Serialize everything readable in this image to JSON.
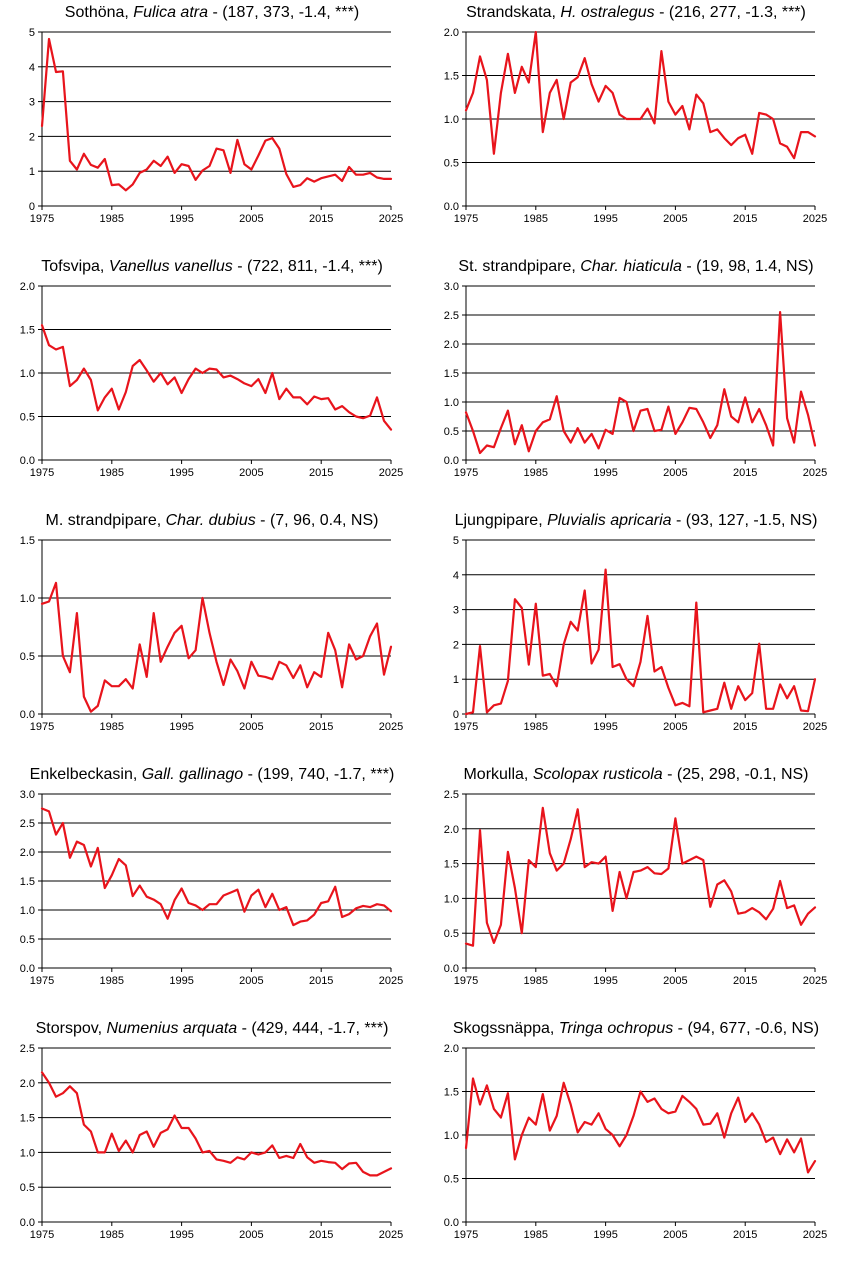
{
  "chart_data": [
    {
      "type": "line",
      "title": {
        "name": "Sothöna, ",
        "species": "Fulica atra",
        "stats": " - (187, 373, -1.4, ***)"
      },
      "ylim": [
        0,
        5
      ],
      "yticks": [
        0,
        1,
        2,
        3,
        4,
        5
      ],
      "xlim": [
        1975,
        2025
      ],
      "xticks": [
        1975,
        1985,
        1995,
        2005,
        2015,
        2025
      ],
      "grid": true,
      "color": "#e8141c",
      "x": [
        1975,
        1976,
        1977,
        1978,
        1979,
        1980,
        1981,
        1982,
        1983,
        1984,
        1985,
        1986,
        1987,
        1988,
        1989,
        1990,
        1991,
        1992,
        1993,
        1994,
        1995,
        1996,
        1997,
        1998,
        1999,
        2000,
        2001,
        2002,
        2003,
        2004,
        2005,
        2006,
        2007,
        2008,
        2009,
        2010,
        2011,
        2012,
        2013,
        2014,
        2015,
        2016,
        2017,
        2018,
        2019,
        2020,
        2021,
        2022,
        2023,
        2024,
        2025
      ],
      "values": [
        2.3,
        4.8,
        3.85,
        3.87,
        1.3,
        1.05,
        1.5,
        1.18,
        1.1,
        1.35,
        0.6,
        0.62,
        0.45,
        0.62,
        0.95,
        1.05,
        1.3,
        1.15,
        1.42,
        0.95,
        1.2,
        1.15,
        0.75,
        1.02,
        1.15,
        1.65,
        1.6,
        0.95,
        1.9,
        1.2,
        1.05,
        1.45,
        1.88,
        1.95,
        1.65,
        0.92,
        0.55,
        0.6,
        0.8,
        0.7,
        0.8,
        0.85,
        0.9,
        0.72,
        1.12,
        0.9,
        0.9,
        0.95,
        0.82,
        0.78,
        0.78
      ]
    },
    {
      "type": "line",
      "title": {
        "name": "Strandskata, ",
        "species": "H. ostralegus",
        "stats": " - (216, 277, -1.3, ***)"
      },
      "ylim": [
        0,
        2
      ],
      "yticks": [
        0.0,
        0.5,
        1.0,
        1.5,
        2.0
      ],
      "xlim": [
        1975,
        2025
      ],
      "xticks": [
        1975,
        1985,
        1995,
        2005,
        2015,
        2025
      ],
      "grid": true,
      "color": "#e8141c",
      "x": [
        1975,
        1976,
        1977,
        1978,
        1979,
        1980,
        1981,
        1982,
        1983,
        1984,
        1985,
        1986,
        1987,
        1988,
        1989,
        1990,
        1991,
        1992,
        1993,
        1994,
        1995,
        1996,
        1997,
        1998,
        1999,
        2000,
        2001,
        2002,
        2003,
        2004,
        2005,
        2006,
        2007,
        2008,
        2009,
        2010,
        2011,
        2012,
        2013,
        2014,
        2015,
        2016,
        2017,
        2018,
        2019,
        2020,
        2021,
        2022,
        2023,
        2024,
        2025
      ],
      "values": [
        1.1,
        1.3,
        1.72,
        1.45,
        0.6,
        1.3,
        1.75,
        1.3,
        1.6,
        1.42,
        2.0,
        0.85,
        1.3,
        1.45,
        1.0,
        1.42,
        1.48,
        1.7,
        1.4,
        1.2,
        1.38,
        1.3,
        1.05,
        1.0,
        1.0,
        1.0,
        1.12,
        0.95,
        1.78,
        1.2,
        1.05,
        1.15,
        0.88,
        1.28,
        1.18,
        0.85,
        0.88,
        0.78,
        0.7,
        0.78,
        0.82,
        0.6,
        1.07,
        1.05,
        1.0,
        0.72,
        0.68,
        0.55,
        0.85,
        0.85,
        0.8
      ]
    },
    {
      "type": "line",
      "title": {
        "name": "Tofsvipa, ",
        "species": "Vanellus vanellus",
        "stats": " - (722, 811, -1.4, ***)"
      },
      "ylim": [
        0,
        2
      ],
      "yticks": [
        0.0,
        0.5,
        1.0,
        1.5,
        2.0
      ],
      "xlim": [
        1975,
        2025
      ],
      "xticks": [
        1975,
        1985,
        1995,
        2005,
        2015,
        2025
      ],
      "grid": true,
      "color": "#e8141c",
      "x": [
        1975,
        1976,
        1977,
        1978,
        1979,
        1980,
        1981,
        1982,
        1983,
        1984,
        1985,
        1986,
        1987,
        1988,
        1989,
        1990,
        1991,
        1992,
        1993,
        1994,
        1995,
        1996,
        1997,
        1998,
        1999,
        2000,
        2001,
        2002,
        2003,
        2004,
        2005,
        2006,
        2007,
        2008,
        2009,
        2010,
        2011,
        2012,
        2013,
        2014,
        2015,
        2016,
        2017,
        2018,
        2019,
        2020,
        2021,
        2022,
        2023,
        2024,
        2025
      ],
      "values": [
        1.55,
        1.32,
        1.27,
        1.3,
        0.85,
        0.92,
        1.05,
        0.92,
        0.57,
        0.72,
        0.82,
        0.58,
        0.78,
        1.08,
        1.15,
        1.03,
        0.9,
        1.0,
        0.87,
        0.95,
        0.77,
        0.93,
        1.05,
        1.0,
        1.05,
        1.04,
        0.95,
        0.97,
        0.93,
        0.88,
        0.85,
        0.93,
        0.77,
        1.0,
        0.7,
        0.82,
        0.72,
        0.72,
        0.64,
        0.73,
        0.7,
        0.71,
        0.58,
        0.62,
        0.55,
        0.5,
        0.48,
        0.51,
        0.72,
        0.45,
        0.35
      ]
    },
    {
      "type": "line",
      "title": {
        "name": "St. strandpipare, ",
        "species": "Char. hiaticula",
        "stats": " - (19, 98, 1.4, NS)"
      },
      "ylim": [
        0,
        3
      ],
      "yticks": [
        0.0,
        0.5,
        1.0,
        1.5,
        2.0,
        2.5,
        3.0
      ],
      "xlim": [
        1975,
        2025
      ],
      "xticks": [
        1975,
        1985,
        1995,
        2005,
        2015,
        2025
      ],
      "grid": true,
      "color": "#e8141c",
      "x": [
        1975,
        1976,
        1977,
        1978,
        1979,
        1980,
        1981,
        1982,
        1983,
        1984,
        1985,
        1986,
        1987,
        1988,
        1989,
        1990,
        1991,
        1992,
        1993,
        1994,
        1995,
        1996,
        1997,
        1998,
        1999,
        2000,
        2001,
        2002,
        2003,
        2004,
        2005,
        2006,
        2007,
        2008,
        2009,
        2010,
        2011,
        2012,
        2013,
        2014,
        2015,
        2016,
        2017,
        2018,
        2019,
        2020,
        2021,
        2022,
        2023,
        2024,
        2025
      ],
      "values": [
        0.82,
        0.5,
        0.12,
        0.25,
        0.22,
        0.55,
        0.85,
        0.27,
        0.6,
        0.15,
        0.5,
        0.65,
        0.7,
        1.1,
        0.5,
        0.3,
        0.55,
        0.3,
        0.45,
        0.2,
        0.52,
        0.45,
        1.07,
        1.0,
        0.5,
        0.85,
        0.88,
        0.5,
        0.52,
        0.92,
        0.45,
        0.65,
        0.9,
        0.88,
        0.65,
        0.38,
        0.6,
        1.22,
        0.75,
        0.65,
        1.08,
        0.65,
        0.88,
        0.6,
        0.25,
        2.55,
        0.72,
        0.3,
        1.18,
        0.78,
        0.25
      ]
    },
    {
      "type": "line",
      "title": {
        "name": "M. strandpipare, ",
        "species": "Char. dubius",
        "stats": " - (7, 96, 0.4, NS)"
      },
      "ylim": [
        0,
        1.5
      ],
      "yticks": [
        0.0,
        0.5,
        1.0,
        1.5
      ],
      "xlim": [
        1975,
        2025
      ],
      "xticks": [
        1975,
        1985,
        1995,
        2005,
        2015,
        2025
      ],
      "grid": true,
      "color": "#e8141c",
      "x": [
        1975,
        1976,
        1977,
        1978,
        1979,
        1980,
        1981,
        1982,
        1983,
        1984,
        1985,
        1986,
        1987,
        1988,
        1989,
        1990,
        1991,
        1992,
        1993,
        1994,
        1995,
        1996,
        1997,
        1998,
        1999,
        2000,
        2001,
        2002,
        2003,
        2004,
        2005,
        2006,
        2007,
        2008,
        2009,
        2010,
        2011,
        2012,
        2013,
        2014,
        2015,
        2016,
        2017,
        2018,
        2019,
        2020,
        2021,
        2022,
        2023,
        2024,
        2025
      ],
      "values": [
        0.95,
        0.97,
        1.13,
        0.5,
        0.36,
        0.87,
        0.15,
        0.02,
        0.07,
        0.29,
        0.24,
        0.24,
        0.3,
        0.22,
        0.6,
        0.32,
        0.87,
        0.45,
        0.58,
        0.7,
        0.76,
        0.48,
        0.55,
        1.0,
        0.7,
        0.45,
        0.25,
        0.47,
        0.37,
        0.22,
        0.45,
        0.33,
        0.32,
        0.3,
        0.45,
        0.42,
        0.31,
        0.42,
        0.23,
        0.36,
        0.32,
        0.7,
        0.55,
        0.23,
        0.6,
        0.47,
        0.5,
        0.67,
        0.78,
        0.34,
        0.58
      ]
    },
    {
      "type": "line",
      "title": {
        "name": "Ljungpipare, ",
        "species": "Pluvialis apricaria",
        "stats": " - (93, 127, -1.5, NS)"
      },
      "ylim": [
        0,
        5
      ],
      "yticks": [
        0,
        1,
        2,
        3,
        4,
        5
      ],
      "xlim": [
        1975,
        2025
      ],
      "xticks": [
        1975,
        1985,
        1995,
        2005,
        2015,
        2025
      ],
      "grid": true,
      "color": "#e8141c",
      "x": [
        1975,
        1976,
        1977,
        1978,
        1979,
        1980,
        1981,
        1982,
        1983,
        1984,
        1985,
        1986,
        1987,
        1988,
        1989,
        1990,
        1991,
        1992,
        1993,
        1994,
        1995,
        1996,
        1997,
        1998,
        1999,
        2000,
        2001,
        2002,
        2003,
        2004,
        2005,
        2006,
        2007,
        2008,
        2009,
        2010,
        2011,
        2012,
        2013,
        2014,
        2015,
        2016,
        2017,
        2018,
        2019,
        2020,
        2021,
        2022,
        2023,
        2024,
        2025
      ],
      "values": [
        0.0,
        0.05,
        1.95,
        0.05,
        0.25,
        0.3,
        0.95,
        3.3,
        3.05,
        1.42,
        3.17,
        1.1,
        1.15,
        0.8,
        2.0,
        2.65,
        2.4,
        3.55,
        1.45,
        1.85,
        4.15,
        1.35,
        1.43,
        1.0,
        0.8,
        1.5,
        2.82,
        1.22,
        1.35,
        0.75,
        0.25,
        0.32,
        0.22,
        3.2,
        0.05,
        0.1,
        0.15,
        0.9,
        0.15,
        0.8,
        0.4,
        0.6,
        2.02,
        0.15,
        0.15,
        0.85,
        0.45,
        0.8,
        0.1,
        0.08,
        1.0
      ]
    },
    {
      "type": "line",
      "title": {
        "name": "Enkelbeckasin, ",
        "species": "Gall. gallinago",
        "stats": " - (199, 740, -1.7, ***)"
      },
      "ylim": [
        0,
        3
      ],
      "yticks": [
        0.0,
        0.5,
        1.0,
        1.5,
        2.0,
        2.5,
        3.0
      ],
      "xlim": [
        1975,
        2025
      ],
      "xticks": [
        1975,
        1985,
        1995,
        2005,
        2015,
        2025
      ],
      "grid": true,
      "color": "#e8141c",
      "x": [
        1975,
        1976,
        1977,
        1978,
        1979,
        1980,
        1981,
        1982,
        1983,
        1984,
        1985,
        1986,
        1987,
        1988,
        1989,
        1990,
        1991,
        1992,
        1993,
        1994,
        1995,
        1996,
        1997,
        1998,
        1999,
        2000,
        2001,
        2002,
        2003,
        2004,
        2005,
        2006,
        2007,
        2008,
        2009,
        2010,
        2011,
        2012,
        2013,
        2014,
        2015,
        2016,
        2017,
        2018,
        2019,
        2020,
        2021,
        2022,
        2023,
        2024,
        2025
      ],
      "values": [
        2.75,
        2.7,
        2.3,
        2.5,
        1.9,
        2.18,
        2.12,
        1.75,
        2.07,
        1.38,
        1.6,
        1.88,
        1.77,
        1.24,
        1.42,
        1.23,
        1.18,
        1.1,
        0.85,
        1.17,
        1.37,
        1.12,
        1.08,
        1.0,
        1.1,
        1.1,
        1.25,
        1.3,
        1.35,
        0.97,
        1.25,
        1.35,
        1.05,
        1.28,
        1.0,
        1.05,
        0.74,
        0.8,
        0.82,
        0.92,
        1.12,
        1.15,
        1.4,
        0.88,
        0.93,
        1.03,
        1.07,
        1.05,
        1.1,
        1.08,
        0.98
      ]
    },
    {
      "type": "line",
      "title": {
        "name": "Morkulla, ",
        "species": "Scolopax rusticola",
        "stats": " - (25, 298, -0.1, NS)"
      },
      "ylim": [
        0,
        2.5
      ],
      "yticks": [
        0.0,
        0.5,
        1.0,
        1.5,
        2.0,
        2.5
      ],
      "xlim": [
        1975,
        2025
      ],
      "xticks": [
        1975,
        1985,
        1995,
        2005,
        2015,
        2025
      ],
      "grid": true,
      "color": "#e8141c",
      "x": [
        1975,
        1976,
        1977,
        1978,
        1979,
        1980,
        1981,
        1982,
        1983,
        1984,
        1985,
        1986,
        1987,
        1988,
        1989,
        1990,
        1991,
        1992,
        1993,
        1994,
        1995,
        1996,
        1997,
        1998,
        1999,
        2000,
        2001,
        2002,
        2003,
        2004,
        2005,
        2006,
        2007,
        2008,
        2009,
        2010,
        2011,
        2012,
        2013,
        2014,
        2015,
        2016,
        2017,
        2018,
        2019,
        2020,
        2021,
        2022,
        2023,
        2024,
        2025
      ],
      "values": [
        0.35,
        0.32,
        1.98,
        0.65,
        0.36,
        0.62,
        1.67,
        1.15,
        0.5,
        1.55,
        1.45,
        2.3,
        1.65,
        1.4,
        1.5,
        1.85,
        2.28,
        1.45,
        1.52,
        1.5,
        1.6,
        0.82,
        1.38,
        1.0,
        1.38,
        1.4,
        1.45,
        1.36,
        1.35,
        1.43,
        2.15,
        1.5,
        1.55,
        1.6,
        1.55,
        0.88,
        1.2,
        1.26,
        1.1,
        0.78,
        0.8,
        0.86,
        0.8,
        0.7,
        0.85,
        1.25,
        0.86,
        0.9,
        0.62,
        0.78,
        0.87
      ]
    },
    {
      "type": "line",
      "title": {
        "name": "Storspov, ",
        "species": "Numenius arquata",
        "stats": " - (429, 444, -1.7, ***)"
      },
      "ylim": [
        0,
        2.5
      ],
      "yticks": [
        0.0,
        0.5,
        1.0,
        1.5,
        2.0,
        2.5
      ],
      "xlim": [
        1975,
        2025
      ],
      "xticks": [
        1975,
        1985,
        1995,
        2005,
        2015,
        2025
      ],
      "grid": true,
      "color": "#e8141c",
      "x": [
        1975,
        1976,
        1977,
        1978,
        1979,
        1980,
        1981,
        1982,
        1983,
        1984,
        1985,
        1986,
        1987,
        1988,
        1989,
        1990,
        1991,
        1992,
        1993,
        1994,
        1995,
        1996,
        1997,
        1998,
        1999,
        2000,
        2001,
        2002,
        2003,
        2004,
        2005,
        2006,
        2007,
        2008,
        2009,
        2010,
        2011,
        2012,
        2013,
        2014,
        2015,
        2016,
        2017,
        2018,
        2019,
        2020,
        2021,
        2022,
        2023,
        2024,
        2025
      ],
      "values": [
        2.15,
        2.0,
        1.8,
        1.85,
        1.95,
        1.85,
        1.4,
        1.3,
        1.0,
        1.0,
        1.27,
        1.02,
        1.17,
        1.0,
        1.25,
        1.3,
        1.08,
        1.28,
        1.33,
        1.53,
        1.35,
        1.35,
        1.2,
        1.0,
        1.02,
        0.9,
        0.88,
        0.85,
        0.93,
        0.9,
        1.0,
        0.97,
        1.0,
        1.1,
        0.92,
        0.95,
        0.92,
        1.12,
        0.93,
        0.85,
        0.88,
        0.86,
        0.85,
        0.76,
        0.84,
        0.85,
        0.72,
        0.67,
        0.67,
        0.72,
        0.77
      ]
    },
    {
      "type": "line",
      "title": {
        "name": "Skogssnäppa, ",
        "species": "Tringa ochropus",
        "stats": " - (94, 677, -0.6, NS)"
      },
      "ylim": [
        0,
        2
      ],
      "yticks": [
        0.0,
        0.5,
        1.0,
        1.5,
        2.0
      ],
      "xlim": [
        1975,
        2025
      ],
      "xticks": [
        1975,
        1985,
        1995,
        2005,
        2015,
        2025
      ],
      "grid": true,
      "color": "#e8141c",
      "x": [
        1975,
        1976,
        1977,
        1978,
        1979,
        1980,
        1981,
        1982,
        1983,
        1984,
        1985,
        1986,
        1987,
        1988,
        1989,
        1990,
        1991,
        1992,
        1993,
        1994,
        1995,
        1996,
        1997,
        1998,
        1999,
        2000,
        2001,
        2002,
        2003,
        2004,
        2005,
        2006,
        2007,
        2008,
        2009,
        2010,
        2011,
        2012,
        2013,
        2014,
        2015,
        2016,
        2017,
        2018,
        2019,
        2020,
        2021,
        2022,
        2023,
        2024,
        2025
      ],
      "values": [
        0.85,
        1.65,
        1.35,
        1.57,
        1.3,
        1.2,
        1.48,
        0.72,
        1.0,
        1.2,
        1.12,
        1.47,
        1.05,
        1.22,
        1.6,
        1.35,
        1.03,
        1.15,
        1.12,
        1.25,
        1.07,
        1.0,
        0.87,
        1.0,
        1.22,
        1.5,
        1.38,
        1.42,
        1.3,
        1.25,
        1.27,
        1.45,
        1.38,
        1.3,
        1.12,
        1.13,
        1.25,
        0.97,
        1.25,
        1.43,
        1.15,
        1.25,
        1.12,
        0.92,
        0.97,
        0.78,
        0.95,
        0.8,
        0.96,
        0.57,
        0.7
      ]
    }
  ]
}
